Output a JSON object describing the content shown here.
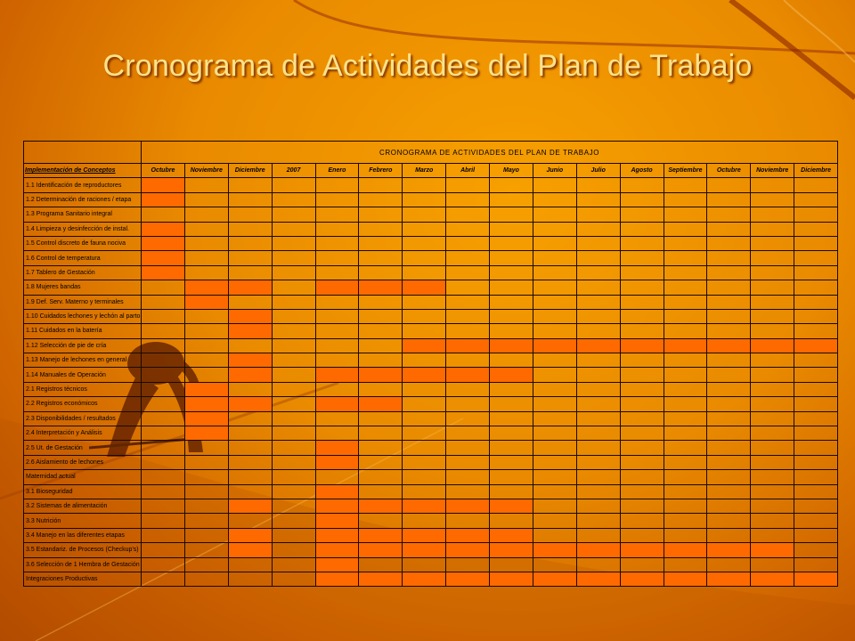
{
  "slide": {
    "title": "Cronograma de Actividades del Plan de Trabajo"
  },
  "schedule": {
    "caption": "CRONOGRAMA DE ACTIVIDADES DEL PLAN DE TRABAJO",
    "header_label": "Implementación de Conceptos",
    "months": [
      "Octubre",
      "Noviembre",
      "Diciembre",
      "2007",
      "Enero",
      "Febrero",
      "Marzo",
      "Abril",
      "Mayo",
      "Junio",
      "Julio",
      "Agosto",
      "Septiembre",
      "Octubre",
      "Noviembre",
      "Diciembre"
    ],
    "fill_color": "#ff6a00",
    "rows": [
      {
        "label": "1.1  Identificación de reproductores",
        "active": [
          0
        ]
      },
      {
        "label": "1.2  Determinación de raciones / etapa",
        "active": [
          0
        ]
      },
      {
        "label": "1.3  Programa Sanitario integral",
        "active": []
      },
      {
        "label": "1.4  Limpieza y desinfección de instal.",
        "active": [
          0
        ]
      },
      {
        "label": "1.5  Control discreto de fauna nociva",
        "active": [
          0
        ]
      },
      {
        "label": "1.6  Control de temperatura",
        "active": [
          0
        ]
      },
      {
        "label": "1.7  Tablero de Gestación",
        "active": [
          0
        ]
      },
      {
        "label": "1.8  Mujeres bandas",
        "active": [
          1,
          2,
          4,
          5,
          6
        ]
      },
      {
        "label": "1.9  Def. Serv. Materno y terminales",
        "active": [
          1
        ]
      },
      {
        "label": "1.10 Cuidados lechones y lechón al parto",
        "active": [
          2
        ]
      },
      {
        "label": "1.11 Cuidados en la batería",
        "active": [
          2
        ]
      },
      {
        "label": "1.12 Selección de pie de cría",
        "active": [
          6,
          7,
          8,
          9,
          10,
          11,
          12,
          13,
          14,
          15
        ]
      },
      {
        "label": "1.13 Manejo de lechones en general",
        "active": [
          2
        ]
      },
      {
        "label": "1.14 Manuales de Operación",
        "active": [
          2,
          4,
          5,
          6,
          7,
          8
        ]
      },
      {
        "label": "2.1  Registros técnicos",
        "active": [
          1
        ]
      },
      {
        "label": "2.2  Registros económicos",
        "active": [
          1,
          2,
          4,
          5
        ]
      },
      {
        "label": "2.3  Disponibilidades / resultados",
        "active": [
          1
        ]
      },
      {
        "label": "2.4  Interpretación y Análisis",
        "active": [
          1
        ]
      },
      {
        "label": "2.5  Ut. de Gestación",
        "active": [
          4
        ]
      },
      {
        "label": "2.6  Aislamiento de lechones",
        "active": [
          4
        ]
      },
      {
        "label": "Maternidad actual",
        "active": []
      },
      {
        "label": "3.1  Bioseguridad",
        "active": [
          4
        ]
      },
      {
        "label": "3.2 Sistemas de alimentación",
        "active": [
          2,
          4,
          5,
          6,
          7,
          8
        ]
      },
      {
        "label": "3.3 Nutrición",
        "active": [
          4
        ]
      },
      {
        "label": "3.4  Manejo en las diferentes etapas",
        "active": [
          2,
          4,
          5,
          6,
          7,
          8
        ]
      },
      {
        "label": "3.5  Estandariz. de Procesos (Checkup's)",
        "active": [
          2,
          4,
          5,
          6,
          7,
          8,
          9,
          10,
          11,
          12,
          13,
          14
        ]
      },
      {
        "label": "3.6  Selección de 1 Hembra de Gestación",
        "active": [
          4
        ]
      },
      {
        "label": "Integraciones Productivas",
        "active": [
          4,
          5,
          6,
          7,
          8,
          9,
          10,
          11,
          12,
          13,
          14,
          15
        ]
      }
    ]
  }
}
